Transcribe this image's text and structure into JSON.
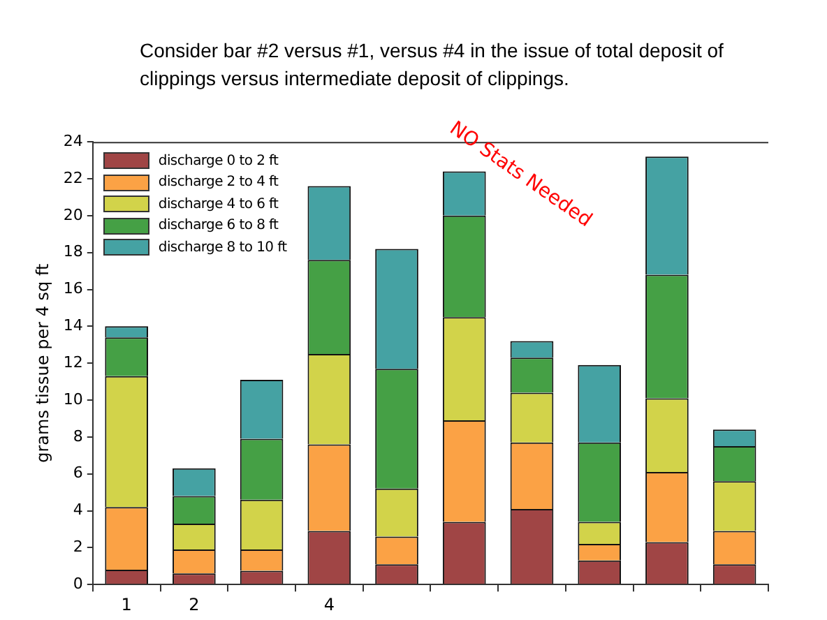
{
  "chart_data": {
    "type": "bar",
    "stacked": true,
    "title": "Consider bar #2 versus #1, versus #4 in the issue of total deposit of clippings versus  intermediate deposit of clippings.",
    "ylabel": "grams tissue per 4 sq ft",
    "categories": [
      "1",
      "2",
      null,
      "4",
      null,
      null,
      null,
      null,
      null,
      null
    ],
    "series": [
      {
        "name": "discharge 0 to 2 ft",
        "color": "#a04545",
        "values": [
          0.8,
          0.6,
          0.75,
          2.9,
          1.1,
          3.4,
          4.1,
          1.3,
          2.3,
          1.1
        ]
      },
      {
        "name": "discharge 2 to 4 ft",
        "color": "#fba245",
        "values": [
          3.4,
          1.3,
          1.15,
          4.7,
          1.5,
          5.5,
          3.6,
          0.9,
          3.8,
          1.8
        ]
      },
      {
        "name": "discharge 4 to 6 ft",
        "color": "#d2d34a",
        "values": [
          7.1,
          1.4,
          2.7,
          4.9,
          2.6,
          5.6,
          2.7,
          1.2,
          4.0,
          2.7
        ]
      },
      {
        "name": "discharge 6 to 8 ft",
        "color": "#45a045",
        "values": [
          2.1,
          1.5,
          3.3,
          5.1,
          6.5,
          5.5,
          1.9,
          4.3,
          6.7,
          1.9
        ]
      },
      {
        "name": "discharge 8 to 10 ft",
        "color": "#45a2a3",
        "values": [
          0.6,
          1.5,
          3.2,
          4.0,
          6.5,
          2.4,
          0.9,
          4.2,
          6.4,
          0.9
        ]
      }
    ],
    "ylim": [
      0,
      24
    ],
    "yticks": [
      0,
      2,
      4,
      6,
      8,
      10,
      12,
      14,
      16,
      18,
      20,
      22,
      24
    ],
    "grid": false,
    "legend": "top left",
    "annotations": [
      "NO Stats Needed"
    ]
  }
}
